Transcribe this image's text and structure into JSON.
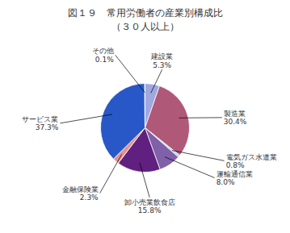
{
  "chart_data": {
    "type": "pie",
    "title": "図１９　常用労働者の産業別構成比",
    "subtitle": "（３０人以上）",
    "categories": [
      "建設業",
      "製造業",
      "電気ガス水道業",
      "運輸通信業",
      "卸小売業飲食店",
      "金融保険業",
      "サービス業",
      "その他"
    ],
    "values": [
      5.3,
      30.4,
      0.8,
      8.0,
      15.8,
      2.3,
      37.3,
      0.1
    ],
    "value_labels": [
      "5.3%",
      "30.4%",
      "0.8%",
      "8.0%",
      "15.8%",
      "2.3%",
      "37.3%",
      "0.1%"
    ],
    "colors": [
      "#a0a8e0",
      "#b05878",
      "#b0dce8",
      "#8060a8",
      "#602080",
      "#e89090",
      "#2858c8",
      "#c0c0c0"
    ],
    "data_labels": true
  }
}
